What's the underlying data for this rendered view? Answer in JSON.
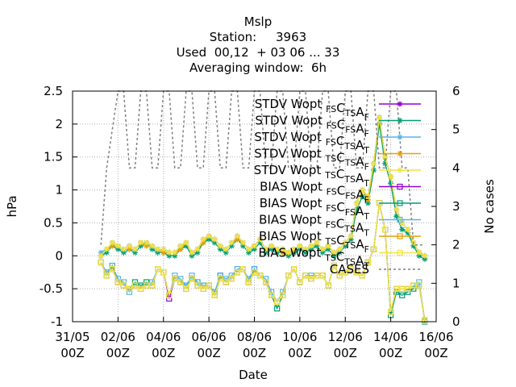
{
  "header": {
    "title": "Mslp",
    "station_line": "Station:     3963",
    "used_line": "Used  00,12  + 03 06 ... 33",
    "window_line": "Averaging window:  6h"
  },
  "chart_data": {
    "type": "line",
    "title": "Mslp",
    "xlabel": "Date",
    "ylabel": "hPa",
    "y2label": "No cases",
    "ylim": [
      -1,
      2.5
    ],
    "y2lim": [
      0,
      6
    ],
    "yticks": [
      "2.5",
      "2",
      "1.5",
      "1",
      "0.5",
      "0",
      "-0.5",
      "-1"
    ],
    "y2ticks": [
      "6",
      "5",
      "4",
      "3",
      "2",
      "1",
      "0"
    ],
    "xticks": [
      {
        "d": "31/05",
        "h": "00Z"
      },
      {
        "d": "02/06",
        "h": "00Z"
      },
      {
        "d": "04/06",
        "h": "00Z"
      },
      {
        "d": "06/06",
        "h": "00Z"
      },
      {
        "d": "08/06",
        "h": "00Z"
      },
      {
        "d": "10/06",
        "h": "00Z"
      },
      {
        "d": "12/06",
        "h": "00Z"
      },
      {
        "d": "14/06",
        "h": "00Z"
      },
      {
        "d": "16/06",
        "h": "00Z"
      }
    ],
    "grid": true,
    "legend_position": "top-right",
    "x_hours_since_3105_00Z": [
      30,
      36,
      42,
      48,
      54,
      60,
      66,
      72,
      78,
      84,
      90,
      96,
      102,
      108,
      114,
      120,
      126,
      132,
      138,
      144,
      150,
      156,
      162,
      168,
      174,
      180,
      186,
      192,
      198,
      204,
      210,
      216,
      222,
      228,
      234,
      240,
      246,
      252,
      258,
      264,
      270,
      276,
      282,
      288,
      294,
      300,
      306,
      312,
      318,
      324,
      330,
      336,
      342,
      348,
      354,
      360,
      366,
      372
    ],
    "series": [
      {
        "name": "STDV Wopt FS CTS AF",
        "color": "#9400d3",
        "marker": "star",
        "axis": "y",
        "values": [
          0.0,
          0.1,
          0.2,
          0.15,
          0.1,
          0.15,
          0.1,
          0.2,
          0.2,
          0.15,
          0.1,
          0.1,
          0.05,
          0.05,
          0.15,
          0.2,
          0.05,
          0.1,
          0.25,
          0.3,
          0.25,
          0.15,
          0.1,
          0.2,
          0.3,
          0.2,
          0.1,
          0.15,
          0.25,
          0.1,
          0.15,
          0.1,
          0.1,
          0.05,
          0.1,
          0.15,
          0.1,
          0.15,
          0.2,
          0.1,
          0.15,
          0.05,
          0.1,
          0.2,
          0.3,
          0.8,
          1.0,
          0.9,
          1.4,
          2.1,
          1.5,
          1.2,
          0.7,
          0.5,
          0.4,
          0.2,
          0.05,
          0.0
        ]
      },
      {
        "name": "STDV Wopt FS CFS AF",
        "color": "#009e73",
        "marker": "star",
        "axis": "y",
        "values": [
          0.0,
          0.05,
          0.15,
          0.1,
          0.05,
          0.1,
          0.05,
          0.15,
          0.2,
          0.1,
          0.05,
          0.05,
          0.0,
          0.0,
          0.1,
          0.15,
          0.0,
          0.05,
          0.2,
          0.25,
          0.2,
          0.1,
          0.05,
          0.15,
          0.25,
          0.15,
          0.05,
          0.1,
          0.2,
          0.05,
          0.1,
          0.05,
          0.05,
          0.0,
          0.05,
          0.1,
          0.05,
          0.1,
          0.15,
          0.05,
          0.1,
          0.0,
          0.05,
          0.15,
          0.25,
          0.7,
          0.9,
          0.8,
          1.3,
          2.0,
          1.4,
          1.1,
          0.6,
          0.4,
          0.35,
          0.15,
          0.0,
          -0.05
        ]
      },
      {
        "name": "STDV Wopt FS CTS AT",
        "color": "#56b4e9",
        "marker": "star",
        "axis": "y",
        "values": [
          0.05,
          0.1,
          0.2,
          0.15,
          0.1,
          0.15,
          0.1,
          0.2,
          0.2,
          0.15,
          0.1,
          0.1,
          0.05,
          0.05,
          0.15,
          0.2,
          0.05,
          0.1,
          0.25,
          0.3,
          0.25,
          0.15,
          0.1,
          0.2,
          0.3,
          0.2,
          0.1,
          0.15,
          0.25,
          0.1,
          0.15,
          0.1,
          0.1,
          0.05,
          0.1,
          0.15,
          0.1,
          0.15,
          0.2,
          0.1,
          0.15,
          0.05,
          0.1,
          0.2,
          0.3,
          0.8,
          1.0,
          0.9,
          1.4,
          2.1,
          1.5,
          1.2,
          0.7,
          0.5,
          0.4,
          0.2,
          0.05,
          0.0
        ]
      },
      {
        "name": "STDV Wopt TS CTS AF",
        "color": "#e69f00",
        "marker": "star",
        "axis": "y",
        "values": [
          0.0,
          0.1,
          0.15,
          0.15,
          0.1,
          0.1,
          0.1,
          0.2,
          0.15,
          0.15,
          0.1,
          0.05,
          0.05,
          0.05,
          0.1,
          0.2,
          0.05,
          0.1,
          0.2,
          0.3,
          0.25,
          0.15,
          0.1,
          0.2,
          0.25,
          0.2,
          0.1,
          0.15,
          0.25,
          0.1,
          0.15,
          0.1,
          0.05,
          0.05,
          0.1,
          0.15,
          0.1,
          0.15,
          0.2,
          0.1,
          0.15,
          0.05,
          0.1,
          0.2,
          0.3,
          0.8,
          1.0,
          0.85,
          1.4,
          2.1,
          1.5,
          1.2,
          0.7,
          0.5,
          0.4,
          0.2,
          0.05,
          0.0
        ]
      },
      {
        "name": "STDV Wopt TS CTS AT",
        "color": "#f0e442",
        "marker": "star",
        "axis": "y",
        "values": [
          0.0,
          0.1,
          0.2,
          0.15,
          0.1,
          0.15,
          0.1,
          0.2,
          0.2,
          0.15,
          0.1,
          0.1,
          0.05,
          0.05,
          0.15,
          0.2,
          0.05,
          0.1,
          0.25,
          0.3,
          0.25,
          0.15,
          0.1,
          0.2,
          0.3,
          0.2,
          0.1,
          0.15,
          0.25,
          0.1,
          0.15,
          0.1,
          0.1,
          0.05,
          0.1,
          0.15,
          0.1,
          0.15,
          0.2,
          0.1,
          0.15,
          0.05,
          0.1,
          0.2,
          0.3,
          0.8,
          1.0,
          0.9,
          1.4,
          2.1,
          1.5,
          1.2,
          0.7,
          0.5,
          0.4,
          0.2,
          0.05,
          0.0
        ]
      },
      {
        "name": "BIAS Wopt FS CFS AF",
        "color": "#9400d3",
        "marker": "square",
        "axis": "y",
        "values": [
          -0.1,
          -0.3,
          -0.2,
          -0.4,
          -0.45,
          -0.5,
          -0.45,
          -0.5,
          -0.45,
          -0.45,
          -0.2,
          -0.25,
          -0.65,
          -0.35,
          -0.4,
          -0.5,
          -0.35,
          -0.45,
          -0.5,
          -0.45,
          -0.6,
          -0.3,
          -0.4,
          -0.35,
          -0.25,
          -0.2,
          -0.4,
          -0.25,
          -0.3,
          -0.4,
          -0.6,
          -0.7,
          -0.6,
          -0.3,
          -0.2,
          -0.4,
          -0.3,
          -0.35,
          -0.3,
          -0.3,
          -0.45,
          -0.15,
          -0.3,
          -0.25,
          -0.2,
          -0.25,
          -0.3,
          -0.1,
          0.1,
          0.8,
          0.4,
          -0.85,
          -0.5,
          -0.5,
          -0.5,
          -0.45,
          -0.45,
          -0.99
        ]
      },
      {
        "name": "BIAS Wopt FS CFS AT",
        "color": "#009e73",
        "marker": "square",
        "axis": "y",
        "values": [
          -0.1,
          -0.3,
          -0.15,
          -0.4,
          -0.45,
          -0.5,
          -0.4,
          -0.45,
          -0.4,
          -0.45,
          -0.2,
          -0.25,
          -0.6,
          -0.35,
          -0.4,
          -0.45,
          -0.35,
          -0.4,
          -0.45,
          -0.45,
          -0.6,
          -0.3,
          -0.4,
          -0.35,
          -0.25,
          -0.2,
          -0.4,
          -0.2,
          -0.3,
          -0.4,
          -0.6,
          -0.8,
          -0.6,
          -0.3,
          -0.2,
          -0.4,
          -0.3,
          -0.35,
          -0.3,
          -0.3,
          -0.45,
          -0.15,
          -0.3,
          -0.25,
          -0.2,
          -0.25,
          -0.3,
          -0.1,
          0.1,
          0.8,
          0.4,
          -0.9,
          -0.55,
          -0.6,
          -0.55,
          -0.5,
          -0.45,
          -1.0
        ]
      },
      {
        "name": "BIAS Wopt FS CTS AT",
        "color": "#56b4e9",
        "marker": "square",
        "axis": "y",
        "values": [
          -0.1,
          -0.25,
          -0.15,
          -0.35,
          -0.4,
          -0.55,
          -0.45,
          -0.5,
          -0.45,
          -0.4,
          -0.2,
          -0.25,
          -0.6,
          -0.3,
          -0.35,
          -0.45,
          -0.3,
          -0.4,
          -0.45,
          -0.45,
          -0.55,
          -0.3,
          -0.35,
          -0.3,
          -0.2,
          -0.2,
          -0.35,
          -0.2,
          -0.3,
          -0.35,
          -0.55,
          -0.7,
          -0.55,
          -0.3,
          -0.2,
          -0.4,
          -0.3,
          -0.3,
          -0.3,
          -0.3,
          -0.45,
          -0.15,
          -0.3,
          -0.25,
          -0.2,
          -0.25,
          -0.3,
          -0.1,
          0.1,
          0.8,
          0.4,
          -0.85,
          -0.5,
          -0.5,
          -0.5,
          -0.45,
          -0.4,
          -0.98
        ]
      },
      {
        "name": "BIAS Wopt TS CTS AF",
        "color": "#e69f00",
        "marker": "square",
        "axis": "y",
        "values": [
          -0.1,
          -0.3,
          -0.2,
          -0.4,
          -0.45,
          -0.5,
          -0.45,
          -0.5,
          -0.45,
          -0.45,
          -0.2,
          -0.25,
          -0.6,
          -0.35,
          -0.4,
          -0.5,
          -0.35,
          -0.45,
          -0.5,
          -0.45,
          -0.6,
          -0.35,
          -0.4,
          -0.35,
          -0.25,
          -0.2,
          -0.4,
          -0.25,
          -0.3,
          -0.4,
          -0.6,
          -0.7,
          -0.6,
          -0.3,
          -0.2,
          -0.4,
          -0.3,
          -0.35,
          -0.3,
          -0.3,
          -0.45,
          -0.15,
          -0.3,
          -0.25,
          -0.2,
          -0.25,
          -0.3,
          -0.1,
          0.1,
          0.8,
          0.4,
          -0.85,
          -0.5,
          -0.5,
          -0.5,
          -0.45,
          -0.45,
          -0.99
        ]
      },
      {
        "name": "BIAS Wopt TS CTS AT",
        "color": "#f0e442",
        "marker": "square",
        "axis": "y",
        "values": [
          -0.1,
          -0.3,
          -0.2,
          -0.4,
          -0.45,
          -0.5,
          -0.45,
          -0.5,
          -0.45,
          -0.45,
          -0.2,
          -0.25,
          -0.6,
          -0.35,
          -0.4,
          -0.5,
          -0.35,
          -0.45,
          -0.5,
          -0.45,
          -0.6,
          -0.35,
          -0.4,
          -0.35,
          -0.25,
          -0.2,
          -0.4,
          -0.25,
          -0.3,
          -0.4,
          -0.6,
          -0.7,
          -0.6,
          -0.3,
          -0.2,
          -0.4,
          -0.3,
          -0.35,
          -0.3,
          -0.3,
          -0.45,
          -0.15,
          -0.3,
          -0.25,
          -0.2,
          -0.25,
          -0.3,
          -0.1,
          0.1,
          0.8,
          0.4,
          -0.85,
          -0.5,
          -0.5,
          -0.5,
          -0.45,
          -0.45,
          -0.99
        ]
      },
      {
        "name": "CASES",
        "color": "#808080",
        "marker": "none",
        "dash": true,
        "axis": "y2",
        "values": [
          2,
          4,
          5,
          6,
          6,
          4,
          4,
          6,
          6,
          4,
          4,
          6,
          6,
          4,
          4,
          6,
          6,
          4,
          4,
          6,
          6,
          4,
          4,
          6,
          6,
          4,
          4,
          6,
          6,
          4,
          4,
          6,
          6,
          4,
          4,
          6,
          6,
          4,
          4,
          6,
          6,
          4,
          4,
          6,
          6,
          4,
          4,
          6,
          6,
          4,
          4,
          6,
          6,
          4,
          4,
          2,
          2,
          2
        ]
      }
    ]
  },
  "legend": [
    {
      "pre": "STDV Wopt",
      "s1": "FS",
      "m1": "C",
      "s2": "TS",
      "m2": "A",
      "s3": "F"
    },
    {
      "pre": "STDV Wopt",
      "s1": "FS",
      "m1": "C",
      "s2": "FS",
      "m2": "A",
      "s3": "F"
    },
    {
      "pre": "STDV Wopt",
      "s1": "FS",
      "m1": "C",
      "s2": "TS",
      "m2": "A",
      "s3": "T"
    },
    {
      "pre": "STDV Wopt",
      "s1": "TS",
      "m1": "C",
      "s2": "TS",
      "m2": "A",
      "s3": "F"
    },
    {
      "pre": "STDV Wopt",
      "s1": "TS",
      "m1": "C",
      "s2": "TS",
      "m2": "A",
      "s3": "T"
    },
    {
      "pre": "BIAS Wopt",
      "s1": "FS",
      "m1": "C",
      "s2": "FS",
      "m2": "A",
      "s3": "F"
    },
    {
      "pre": "BIAS Wopt",
      "s1": "FS",
      "m1": "C",
      "s2": "FS",
      "m2": "A",
      "s3": "T"
    },
    {
      "pre": "BIAS Wopt",
      "s1": "FS",
      "m1": "C",
      "s2": "TS",
      "m2": "A",
      "s3": "T"
    },
    {
      "pre": "BIAS Wopt",
      "s1": "TS",
      "m1": "C",
      "s2": "TS",
      "m2": "A",
      "s3": "F"
    },
    {
      "pre": "BIAS Wopt",
      "s1": "TS",
      "m1": "C",
      "s2": "TS",
      "m2": "A",
      "s3": "T"
    },
    {
      "pre": "CASES",
      "s1": "",
      "m1": "",
      "s2": "",
      "m2": "",
      "s3": ""
    }
  ]
}
